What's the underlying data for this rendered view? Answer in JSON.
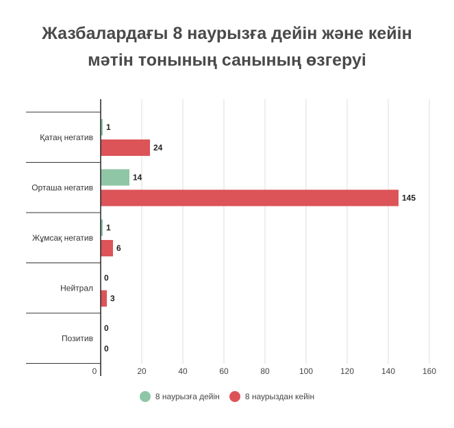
{
  "title_lines": [
    "Жазбалардағы 8 наурызға дейін және кейін",
    "мәтін тонының санының өзгеруі"
  ],
  "colors": {
    "before": "#8fc7a6",
    "after": "#dc5458"
  },
  "chart_data": {
    "type": "bar",
    "orientation": "horizontal",
    "categories": [
      "Қатаң негатив",
      "Орташа негатив",
      "Жұмсақ негатив",
      "Нейтрал",
      "Позитив"
    ],
    "series": [
      {
        "name": "8 наурызға дейін",
        "values": [
          1,
          14,
          1,
          0,
          0
        ]
      },
      {
        "name": "8 наурыздан кейін",
        "values": [
          24,
          145,
          6,
          3,
          0
        ]
      }
    ],
    "xlim": [
      0,
      160
    ],
    "xticks": [
      0,
      20,
      40,
      60,
      80,
      100,
      120,
      140,
      160
    ],
    "grid": true,
    "legend": "bottom"
  }
}
